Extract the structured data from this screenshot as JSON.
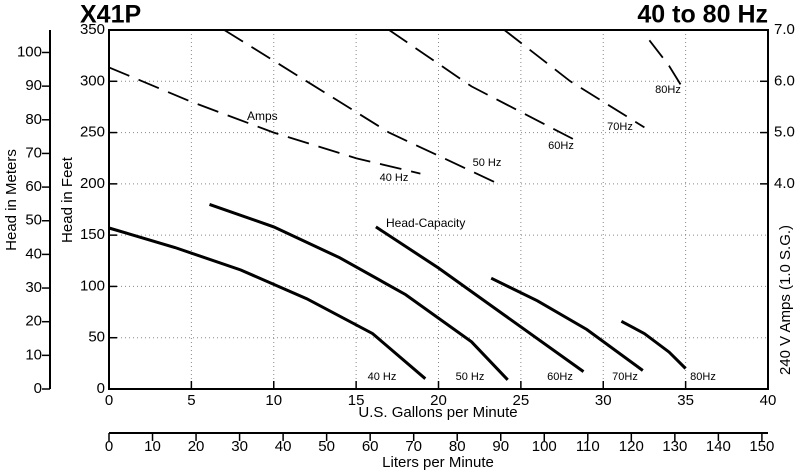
{
  "chart_data": {
    "type": "line",
    "title": "X41P",
    "subtitle": "40 to 80 Hz",
    "x_label": "U.S. Gallons per Minute",
    "y_label": "Head in Feet",
    "y2_label": "240 V Amps (1.0 S.G.)",
    "meters_label": "Head in Meters",
    "lpm_label": "Liters per Minute",
    "annotations": [
      "Amps",
      "Head-Capacity"
    ],
    "xlim": [
      0,
      40
    ],
    "xticks": [
      0,
      5,
      10,
      15,
      20,
      25,
      30,
      35,
      40
    ],
    "ylim": [
      0,
      350
    ],
    "yticks": [
      0,
      50,
      100,
      150,
      200,
      250,
      300,
      350
    ],
    "y2lim": [
      0,
      7
    ],
    "y2ticks": [
      {
        "value": 4,
        "label": "4.0"
      },
      {
        "value": 5,
        "label": "5.0"
      },
      {
        "value": 6,
        "label": "6.0"
      },
      {
        "value": 7,
        "label": "7.0"
      }
    ],
    "meters_lim": [
      0,
      106.68
    ],
    "meters_ticks": [
      0,
      10,
      20,
      30,
      40,
      50,
      60,
      70,
      80,
      90,
      100
    ],
    "lpm_lim": [
      0,
      151.4
    ],
    "lpm_ticks": [
      0,
      10,
      20,
      30,
      40,
      50,
      60,
      70,
      80,
      90,
      100,
      110,
      120,
      130,
      140,
      150
    ],
    "grid": true,
    "color": "#000000",
    "series": [
      {
        "name": "40 Hz",
        "x": [
          0,
          4,
          8,
          12,
          16,
          19.2
        ],
        "values": [
          157,
          138,
          116,
          88,
          54,
          10
        ]
      },
      {
        "name": "50 Hz",
        "x": [
          6.1,
          10,
          14,
          18,
          22,
          24.2
        ],
        "values": [
          180,
          158,
          128,
          92,
          46,
          9
        ]
      },
      {
        "name": "60Hz",
        "x": [
          16.2,
          20,
          24,
          28.8
        ],
        "values": [
          158,
          118,
          72,
          17
        ]
      },
      {
        "name": "70Hz",
        "x": [
          23.2,
          26,
          29,
          32.4
        ],
        "values": [
          108,
          86,
          58,
          18
        ]
      },
      {
        "name": "80Hz",
        "x": [
          31.1,
          32.5,
          34,
          35
        ],
        "values": [
          66,
          54,
          36,
          20
        ]
      },
      {
        "name": "40 Hz",
        "axis": "y2",
        "style": "dashed",
        "x": [
          0,
          5,
          10,
          15,
          18.9
        ],
        "values": [
          6.27,
          5.6,
          5.0,
          4.5,
          4.2
        ]
      },
      {
        "name": "50 Hz",
        "axis": "y2",
        "style": "dashed",
        "x": [
          7,
          12,
          17,
          23.9
        ],
        "values": [
          7.0,
          6.0,
          5.0,
          3.96
        ]
      },
      {
        "name": "60Hz",
        "axis": "y2",
        "style": "dashed",
        "x": [
          17,
          22,
          28.5
        ],
        "values": [
          7.0,
          5.9,
          4.82
        ]
      },
      {
        "name": "70Hz",
        "axis": "y2",
        "style": "dashed",
        "x": [
          24,
          28,
          32.5
        ],
        "values": [
          7.0,
          6.0,
          5.1
        ]
      },
      {
        "name": "80Hz",
        "axis": "y2",
        "style": "dashed",
        "x": [
          32.8,
          34,
          35
        ],
        "values": [
          6.8,
          6.3,
          5.78
        ]
      }
    ]
  }
}
